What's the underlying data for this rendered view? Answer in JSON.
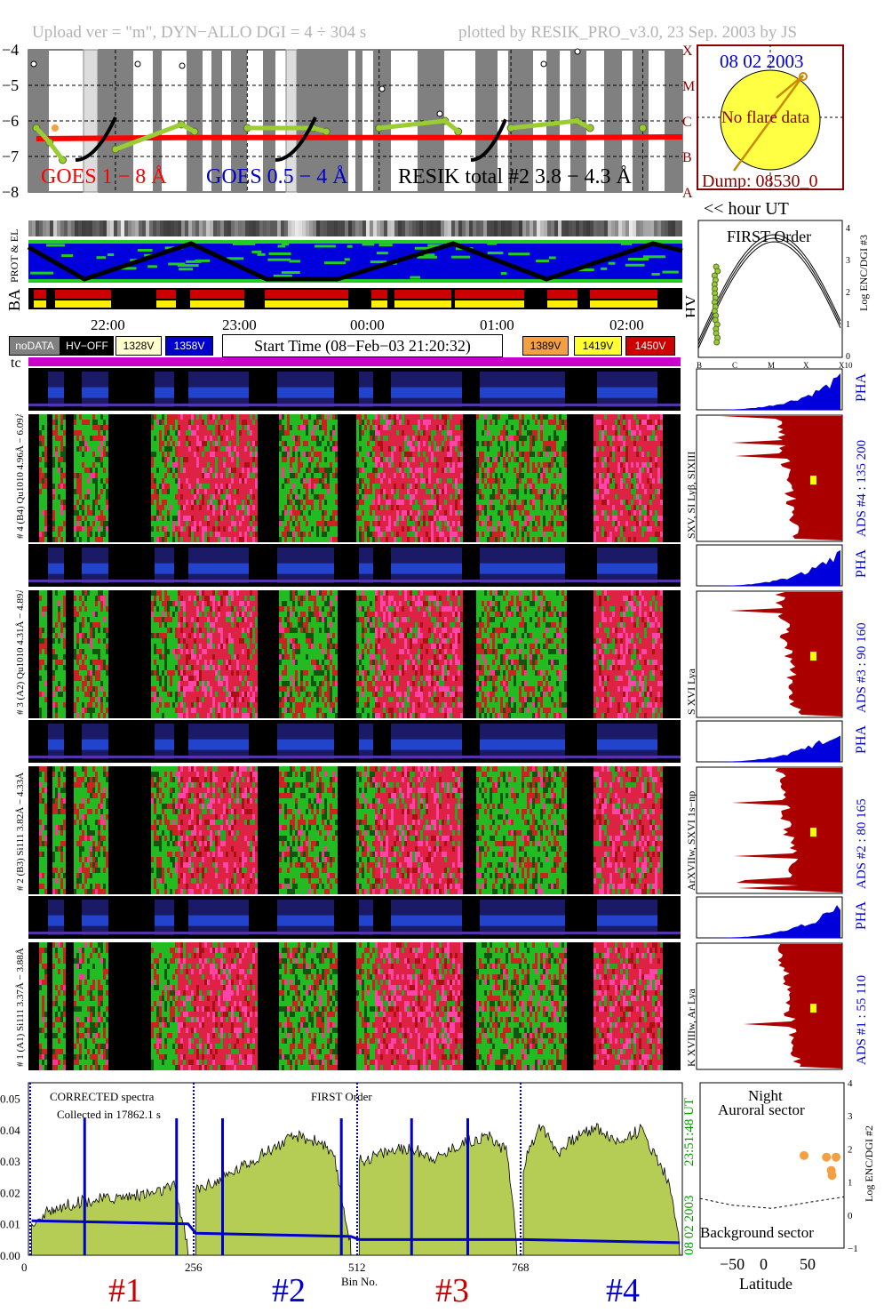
{
  "header": {
    "left": "Upload ver = \"m\", DYN−ALLO DGI =   4 ÷ 304 s",
    "right": "plotted by RESIK_PRO_v3.0, 23 Sep. 2003 by JS"
  },
  "goes_panel": {
    "y_ticks": [
      "−4",
      "−5",
      "−6",
      "−7",
      "−8"
    ],
    "class_labels": [
      "X",
      "M",
      "C",
      "B",
      "A"
    ],
    "legend": {
      "goes_long": "GOES 1 − 8 Å",
      "goes_short": "GOES 0.5 − 4 Å",
      "resik": "RESIK total #2  3.8 − 4.3 Å"
    },
    "hour_ticks": [
      "22",
      "23",
      "24",
      "25",
      "26"
    ],
    "hour_unit": "<< hour UT",
    "colors": {
      "goes_long": "#ff0000",
      "goes_short": "#0000cc",
      "resik": "#9acd32",
      "resik_pre": "#f4a040"
    }
  },
  "sun_panel": {
    "date": "08 02 2003",
    "status": "No flare data",
    "dump": "Dump: 08530_0"
  },
  "orbit_panel": {
    "labels": [
      "PROT & EL",
      "BA",
      "HV"
    ]
  },
  "time_axis": {
    "ticks": [
      "22:00",
      "23:00",
      "00:00",
      "01:00",
      "02:00"
    ]
  },
  "legend_row": {
    "nodata": "noDATA",
    "hvoff": "HV−OFF",
    "v1": "1328V",
    "v2": "1358V",
    "start_time": "Start Time (08−Feb−03 21:20:32)",
    "v3": "1389V",
    "v4": "1419V",
    "v5": "1450V",
    "tc": "tc",
    "colors": {
      "v1": "#ffffcc",
      "v2": "#0000cc",
      "v3": "#f4a040",
      "v4": "#ffff33",
      "v5": "#cc0000",
      "tc": "#cc00cc"
    }
  },
  "first_order_panel": {
    "title": "FIRST Order",
    "x_ticks": [
      "B",
      "C",
      "M",
      "X",
      "X10"
    ],
    "y_ticks": [
      "4",
      "3",
      "2",
      "1",
      "0"
    ],
    "ylabel": "Log ENC/DGI #3"
  },
  "channels": [
    {
      "left_label": "# 4 (B4) Qu1010 4.96Å − 6.09Å",
      "lines": "SXV, SI Lyβ, SIXIII",
      "ads": "ADS #4 :   135 200",
      "pha": "PHA"
    },
    {
      "left_label": "# 3 (A2) Qu1010  4.31Å − 4.89Å",
      "lines": "S XVI Lya",
      "ads": "ADS #3 :    90 160",
      "pha": "PHA"
    },
    {
      "left_label": "# 2 (B3) Si111  3.82Å − 4.33Å",
      "lines": "ArXVIIw, SXVI 1s−np",
      "ads": "ADS #2 :    80 165",
      "pha": "PHA"
    },
    {
      "left_label": "# 1 (A1) Si111  3.37Å − 3.88Å",
      "lines": "K XVIIIw, Ar Lya",
      "ads": "ADS #1 :    55 110",
      "pha": "PHA"
    }
  ],
  "spectrum_panel": {
    "title_left": "CORRECTED spectra",
    "collected": "Collected in 17862.1 s",
    "title_center": "FIRST Order",
    "x_ticks": [
      "0",
      "256",
      "512",
      "768"
    ],
    "xlabel": "Bin No.",
    "y_ticks": [
      "0.05",
      "0.04",
      "0.03",
      "0.02",
      "0.01",
      "0.00"
    ],
    "side_time": "23:51:48 UT",
    "side_date": "08 02 2003",
    "channel_labels": [
      "#1",
      "#2",
      "#3",
      "#4"
    ],
    "channel_colors": [
      "#cc0000",
      "#0000cc",
      "#cc0000",
      "#0000cc"
    ]
  },
  "latitude_panel": {
    "title1": "Night",
    "title2": "Auroral sector",
    "bottom": "Background sector",
    "x_ticks": [
      "−50",
      "0",
      "50"
    ],
    "xlabel": "Latitude",
    "y_ticks": [
      "4",
      "3",
      "2",
      "1",
      "0",
      "−1"
    ],
    "ylabel": "Log ENC/DGI #2"
  },
  "chart_data": [
    {
      "type": "scatter",
      "title": "",
      "xlabel": "hour UT",
      "ylabel": "",
      "xlim": [
        21.34,
        26.3
      ],
      "ylim": [
        -8,
        -4
      ],
      "series": [
        {
          "name": "GOES 1 − 8 Å",
          "x": [
            21.4,
            22.5,
            23.5,
            24.5,
            25.5,
            26.3
          ],
          "y": [
            -6.5,
            -6.47,
            -6.47,
            -6.47,
            -6.47,
            -6.45
          ]
        },
        {
          "name": "RESIK total #2  3.8 − 4.3 Å",
          "x": [
            21.4,
            21.5,
            21.6,
            22.0,
            22.5,
            22.6,
            23.0,
            23.5,
            23.6,
            24.0,
            24.5,
            24.6,
            25.0,
            25.5,
            25.6,
            26.0
          ],
          "y": [
            -6.2,
            -6.6,
            -7.1,
            -6.8,
            -6.1,
            -6.3,
            -6.2,
            -6.2,
            -6.3,
            -6.2,
            -6.0,
            -6.3,
            -6.2,
            -6.0,
            -6.2,
            -6.2
          ]
        }
      ]
    },
    {
      "type": "area",
      "title": "",
      "xlabel": "Bin No.",
      "ylabel": "",
      "xlim": [
        0,
        1024
      ],
      "ylim": [
        0,
        0.055
      ],
      "series": [
        {
          "name": "#1",
          "x": [
            5,
            40,
            80,
            120,
            160,
            200,
            230,
            250
          ],
          "y": [
            0.01,
            0.015,
            0.017,
            0.018,
            0.019,
            0.02,
            0.022,
            0.002
          ]
        },
        {
          "name": "#2",
          "x": [
            262,
            300,
            340,
            380,
            420,
            460,
            480,
            505
          ],
          "y": [
            0.021,
            0.024,
            0.029,
            0.034,
            0.038,
            0.036,
            0.03,
            0.003
          ]
        },
        {
          "name": "#3",
          "x": [
            518,
            560,
            600,
            640,
            680,
            720,
            750,
            765
          ],
          "y": [
            0.03,
            0.033,
            0.034,
            0.031,
            0.036,
            0.038,
            0.033,
            0.004
          ]
        },
        {
          "name": "#4",
          "x": [
            775,
            800,
            830,
            860,
            890,
            920,
            960,
            1000,
            1020
          ],
          "y": [
            0.028,
            0.042,
            0.033,
            0.038,
            0.041,
            0.036,
            0.04,
            0.025,
            0.005
          ]
        },
        {
          "name": "",
          "x": [
            5,
            250,
            262,
            505,
            518,
            765,
            775,
            1020
          ],
          "y": [
            0.011,
            0.01,
            0.007,
            0.006,
            0.005,
            0.005,
            0.005,
            0.004
          ]
        }
      ]
    },
    {
      "type": "scatter",
      "title": "",
      "xlabel": "Latitude",
      "ylabel": "Log ENC/DGI #2",
      "xlim": [
        -90,
        90
      ],
      "ylim": [
        -1,
        4
      ],
      "series": [
        {
          "name": "",
          "x": [
            40,
            68,
            75,
            74,
            80
          ],
          "y": [
            1.8,
            1.75,
            1.2,
            1.35,
            1.75
          ]
        }
      ]
    }
  ]
}
